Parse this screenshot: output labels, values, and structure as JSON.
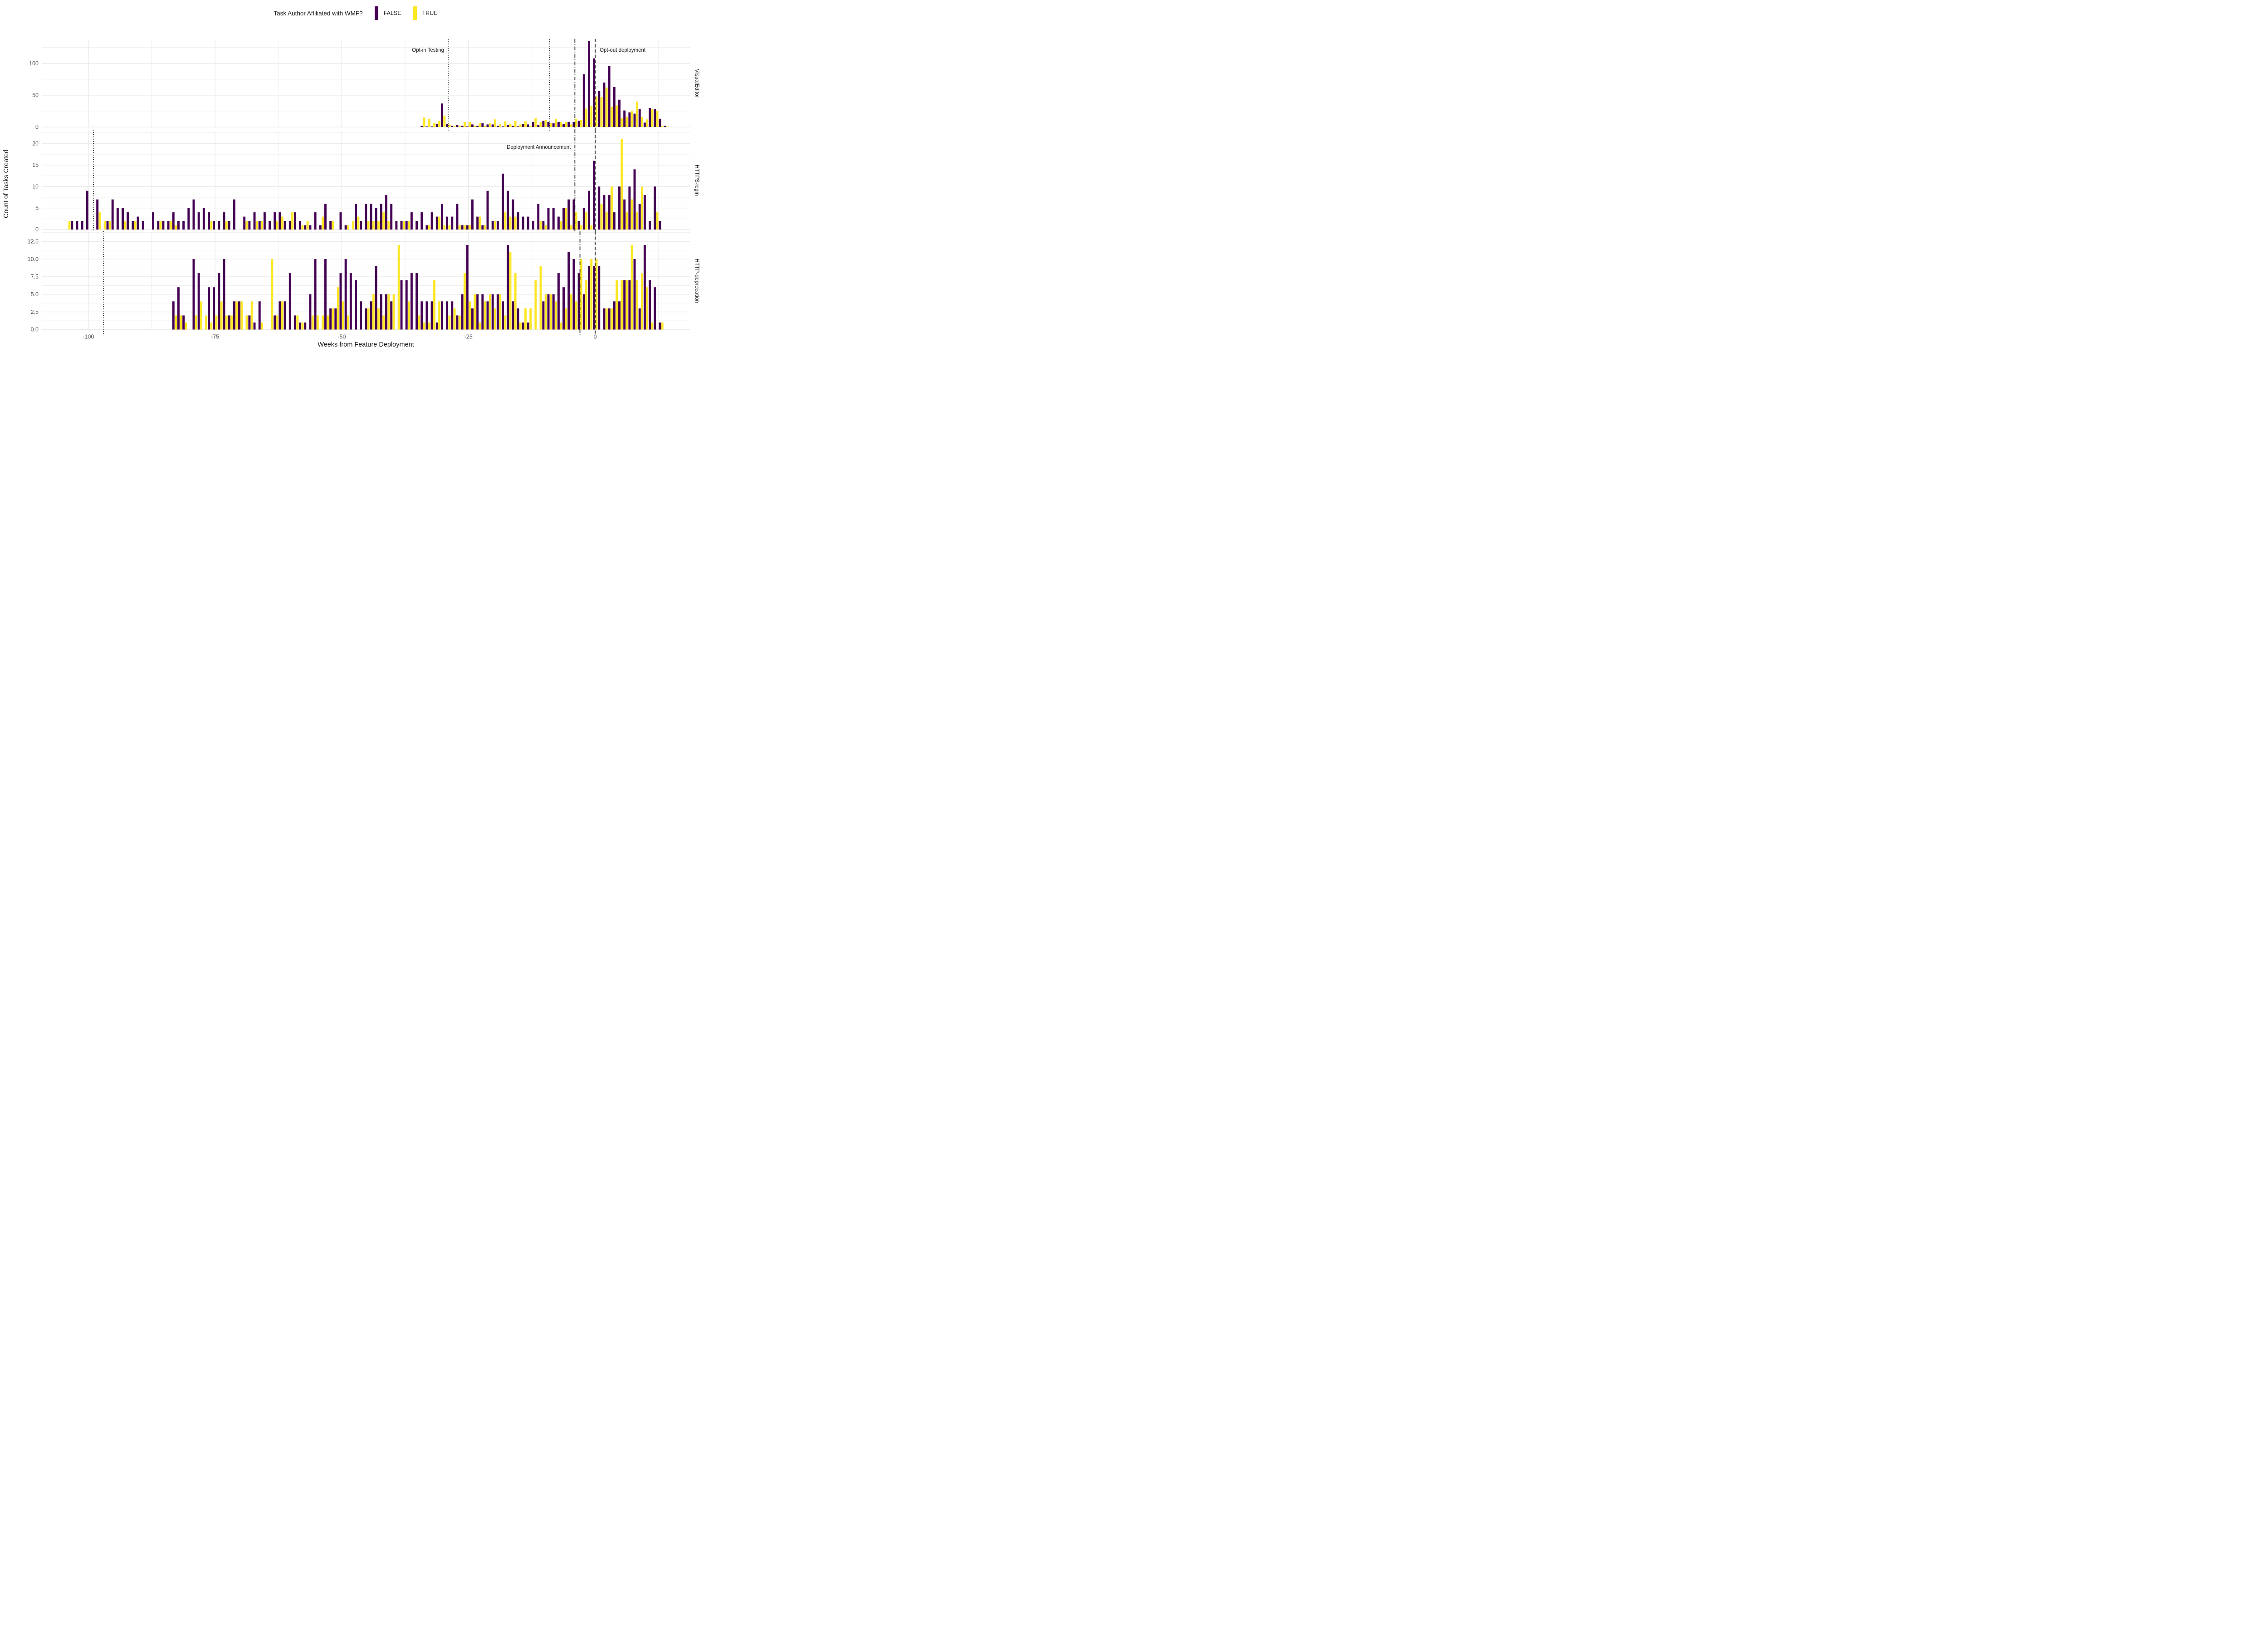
{
  "legend": {
    "title": "Task Author Affiliated with WMF?",
    "items": [
      {
        "label": "FALSE",
        "color": "#440154"
      },
      {
        "label": "TRUE",
        "color": "#FDE725"
      }
    ]
  },
  "axis": {
    "x_label": "Weeks from Feature Deployment",
    "y_label": "Count of Tasks Created",
    "x_ticks": [
      -100,
      -75,
      -50,
      -25,
      0
    ],
    "x_minor_ticks": [
      -87.5,
      -62.5,
      -37.5,
      -12.5,
      12.5
    ],
    "x_range": [
      -109.2,
      18.7
    ],
    "grid_color": "#EBEBEB",
    "tick_text_color": "#4D4D4D",
    "panel_background": "#FFFFFF"
  },
  "chart_data": [
    {
      "type": "bar",
      "facet": "VisualEditor",
      "y_ticks": [
        0,
        50,
        100
      ],
      "y_tick_labels": [
        "0",
        "50",
        "100"
      ],
      "y_minor_ticks": [
        25,
        75,
        125
      ],
      "ylim": [
        0,
        137
      ],
      "weeks": [
        -34,
        -33,
        -32,
        -31,
        -30,
        -29,
        -28,
        -27,
        -26,
        -25,
        -24,
        -23,
        -22,
        -21,
        -20,
        -19,
        -18,
        -17,
        -16,
        -15,
        -14,
        -13,
        -12,
        -11,
        -10,
        -9,
        -8,
        -7,
        -6,
        -5,
        -4,
        -3,
        -2,
        -1,
        0,
        1,
        2,
        3,
        4,
        5,
        6,
        7,
        8,
        9,
        10,
        11,
        12,
        13,
        14
      ],
      "series": [
        {
          "name": "FALSE",
          "color": "#440154",
          "values": [
            2,
            1,
            1,
            5,
            37,
            5,
            2,
            3,
            2,
            1,
            4,
            2,
            6,
            4,
            4,
            2,
            1,
            3,
            2,
            1,
            5,
            4,
            8,
            3,
            10,
            8,
            6,
            8,
            5,
            8,
            8,
            10,
            83,
            135,
            108,
            57,
            70,
            96,
            63,
            43,
            26,
            23,
            21,
            28,
            7,
            30,
            28,
            13,
            2
          ]
        },
        {
          "name": "TRUE",
          "color": "#FDE725",
          "values": [
            15,
            13,
            6,
            10,
            18,
            4,
            1,
            2,
            8,
            8,
            2,
            6,
            2,
            6,
            12,
            5,
            9,
            5,
            10,
            4,
            9,
            1,
            14,
            8,
            11,
            6,
            13,
            8,
            8,
            4,
            13,
            11,
            29,
            33,
            48,
            47,
            62,
            32,
            34,
            14,
            16,
            25,
            40,
            16,
            12,
            28,
            25,
            2,
            1
          ]
        }
      ],
      "events": [
        {
          "week": -29,
          "style": "dotted",
          "label": "Opt-in Testing",
          "label_side": "left",
          "label_dy": 26
        },
        {
          "week": -9,
          "style": "dotted"
        },
        {
          "week": -4,
          "style": "dashdot"
        },
        {
          "week": 0,
          "style": "dashed",
          "label": "Opt-out deployment",
          "label_side": "right",
          "label_dy": 26
        }
      ]
    },
    {
      "type": "bar",
      "facet": "HTTPS-login",
      "y_ticks": [
        0,
        5,
        10,
        15,
        20
      ],
      "y_tick_labels": [
        "0",
        "5",
        "10",
        "15",
        "20"
      ],
      "y_minor_ticks": [
        2.5,
        7.5,
        12.5,
        17.5,
        22.5
      ],
      "ylim": [
        0,
        23
      ],
      "weeks": [
        -104,
        -103,
        -102,
        -101,
        -100,
        -99,
        -98,
        -97,
        -96,
        -95,
        -94,
        -93,
        -92,
        -91,
        -90,
        -89,
        -88,
        -87,
        -86,
        -85,
        -84,
        -83,
        -82,
        -81,
        -80,
        -79,
        -78,
        -77,
        -76,
        -75,
        -74,
        -73,
        -72,
        -71,
        -70,
        -69,
        -68,
        -67,
        -66,
        -65,
        -64,
        -63,
        -62,
        -61,
        -60,
        -59,
        -58,
        -57,
        -56,
        -55,
        -54,
        -53,
        -52,
        -51,
        -50,
        -49,
        -48,
        -47,
        -46,
        -45,
        -44,
        -43,
        -42,
        -41,
        -40,
        -39,
        -38,
        -37,
        -36,
        -35,
        -34,
        -33,
        -32,
        -31,
        -30,
        -29,
        -28,
        -27,
        -26,
        -25,
        -24,
        -23,
        -22,
        -21,
        -20,
        -19,
        -18,
        -17,
        -16,
        -15,
        -14,
        -13,
        -12,
        -11,
        -10,
        -9,
        -8,
        -7,
        -6,
        -5,
        -4,
        -3,
        -2,
        -1,
        0,
        1,
        2,
        3,
        4,
        5,
        6,
        7,
        8,
        9,
        10,
        11,
        12,
        13
      ],
      "series": [
        {
          "name": "FALSE",
          "color": "#440154",
          "values": [
            0,
            2,
            2,
            2,
            9,
            0,
            7,
            0,
            2,
            7,
            5,
            5,
            4,
            2,
            3,
            2,
            0,
            4,
            2,
            2,
            2,
            4,
            2,
            2,
            5,
            7,
            4,
            5,
            4,
            2,
            2,
            4,
            2,
            7,
            0,
            3,
            2,
            4,
            2,
            4,
            2,
            4,
            4,
            2,
            2,
            4,
            2,
            1,
            1,
            4,
            1,
            6,
            2,
            0,
            4,
            1,
            0,
            6,
            2,
            6,
            6,
            5,
            6,
            8,
            6,
            2,
            2,
            2,
            4,
            2,
            4,
            1,
            4,
            3,
            6,
            3,
            3,
            6,
            1,
            1,
            7,
            3,
            1,
            9,
            2,
            2,
            13,
            9,
            7,
            4,
            3,
            3,
            2,
            6,
            2,
            5,
            5,
            3,
            5,
            7,
            7,
            2,
            5,
            9,
            16,
            10,
            8,
            8,
            4,
            10,
            7,
            10,
            14,
            6,
            8,
            2,
            10,
            2
          ]
        },
        {
          "name": "TRUE",
          "color": "#FDE725",
          "values": [
            2,
            0,
            0,
            0,
            0,
            0,
            4,
            2,
            2,
            0,
            0,
            2,
            0,
            2,
            0,
            0,
            0,
            0,
            2,
            0,
            2,
            1,
            0,
            0,
            0,
            0,
            0,
            0,
            2,
            0,
            0,
            2,
            0,
            0,
            0,
            2,
            0,
            2,
            2,
            0,
            0,
            2,
            3,
            0,
            4,
            0,
            1,
            2,
            0,
            0,
            3,
            0,
            2,
            0,
            0,
            1,
            2,
            3,
            0,
            2,
            2,
            2,
            4,
            2,
            0,
            0,
            2,
            2,
            0,
            0,
            0,
            1,
            0,
            3,
            1,
            1,
            0,
            1,
            1,
            1,
            0,
            3,
            1,
            0,
            2,
            0,
            4,
            3,
            3,
            0,
            0,
            0,
            0,
            2,
            1,
            0,
            0,
            2,
            5,
            1,
            4,
            1,
            4,
            1,
            0,
            6,
            4,
            10,
            0,
            21,
            4,
            7,
            4,
            10,
            0,
            0,
            4,
            0
          ]
        }
      ],
      "events": [
        {
          "week": -99,
          "style": "dotted"
        },
        {
          "week": -4,
          "style": "dashdot",
          "label": "Deployment Announcement",
          "label_side": "left",
          "label_dy": 40
        },
        {
          "week": 0,
          "style": "dashed"
        }
      ]
    },
    {
      "type": "bar",
      "facet": "HTTP-deprecation",
      "y_ticks": [
        0,
        2.5,
        5,
        7.5,
        10,
        12.5
      ],
      "y_tick_labels": [
        "0.0",
        "2.5",
        "5.0",
        "7.5",
        "10.0",
        "12.5"
      ],
      "y_minor_ticks": [
        1.25,
        3.75,
        6.25,
        8.75,
        11.25,
        13.75
      ],
      "ylim": [
        0,
        13.8
      ],
      "weeks": [
        -83,
        -82,
        -81,
        -80,
        -79,
        -78,
        -77,
        -76,
        -75,
        -74,
        -73,
        -72,
        -71,
        -70,
        -69,
        -68,
        -67,
        -66,
        -65,
        -64,
        -63,
        -62,
        -61,
        -60,
        -59,
        -58,
        -57,
        -56,
        -55,
        -54,
        -53,
        -52,
        -51,
        -50,
        -49,
        -48,
        -47,
        -46,
        -45,
        -44,
        -43,
        -42,
        -41,
        -40,
        -39,
        -38,
        -37,
        -36,
        -35,
        -34,
        -33,
        -32,
        -31,
        -30,
        -29,
        -28,
        -27,
        -26,
        -25,
        -24,
        -23,
        -22,
        -21,
        -20,
        -19,
        -18,
        -17,
        -16,
        -15,
        -14,
        -13,
        -12,
        -11,
        -10,
        -9,
        -8,
        -7,
        -6,
        -5,
        -4,
        -3,
        -2,
        -1,
        0,
        1,
        2,
        3,
        4,
        5,
        6,
        7,
        8,
        9,
        10,
        11,
        12,
        13
      ],
      "series": [
        {
          "name": "FALSE",
          "color": "#440154",
          "values": [
            4,
            6,
            2,
            0,
            10,
            8,
            0,
            6,
            6,
            8,
            10,
            2,
            4,
            4,
            0,
            2,
            1,
            4,
            0,
            0,
            2,
            4,
            4,
            8,
            2,
            1,
            1,
            5,
            10,
            0,
            10,
            3,
            3,
            8,
            10,
            8,
            7,
            4,
            3,
            4,
            9,
            5,
            5,
            4,
            0,
            7,
            7,
            8,
            8,
            4,
            4,
            4,
            1,
            4,
            4,
            4,
            2,
            5,
            12,
            3,
            5,
            5,
            4,
            5,
            5,
            4,
            12,
            4,
            3,
            1,
            1,
            0,
            0,
            4,
            5,
            5,
            8,
            6,
            11,
            10,
            8,
            5,
            9,
            9,
            9,
            3,
            3,
            4,
            4,
            7,
            7,
            10,
            3,
            12,
            7,
            6,
            1
          ]
        },
        {
          "name": "TRUE",
          "color": "#FDE725",
          "values": [
            2,
            2,
            1,
            0,
            2,
            4,
            2,
            1,
            2,
            4,
            2,
            2,
            4,
            4,
            2,
            4,
            0,
            1,
            0,
            10,
            2,
            4,
            0,
            0,
            2,
            1,
            0,
            2,
            2,
            2,
            2,
            3,
            6,
            4,
            2,
            0,
            0,
            0,
            3,
            5,
            3,
            2,
            5,
            5,
            12,
            0,
            4,
            0,
            2,
            1,
            1,
            7,
            4,
            0,
            2,
            3,
            2,
            8,
            4,
            5,
            1,
            4,
            5,
            3,
            5,
            2,
            11,
            8,
            1,
            3,
            3,
            7,
            9,
            5,
            5,
            4,
            1,
            3,
            5,
            4,
            10,
            7,
            10,
            10,
            0,
            3,
            3,
            7,
            7,
            7,
            12,
            7,
            8,
            6,
            1,
            0,
            1
          ]
        }
      ],
      "events": [
        {
          "week": -97,
          "style": "dotted"
        },
        {
          "week": -3,
          "style": "dashdot"
        },
        {
          "week": 0,
          "style": "dashed"
        }
      ]
    }
  ]
}
